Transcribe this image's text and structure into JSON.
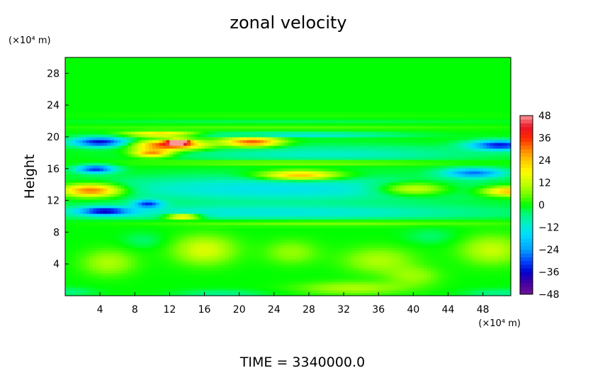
{
  "chart_data": {
    "type": "heatmap",
    "title": "zonal velocity",
    "ylabel": "Height",
    "y_unit": "(×10⁴ m)",
    "x_unit": "(×10⁴ m)",
    "footer": "TIME  =  3340000.0",
    "x_ticks": [
      "4",
      "8",
      "12",
      "16",
      "20",
      "24",
      "28",
      "32",
      "36",
      "40",
      "44",
      "48"
    ],
    "y_ticks": [
      "4",
      "8",
      "12",
      "16",
      "20",
      "24",
      "28"
    ],
    "xlim": [
      0,
      51.2
    ],
    "ylim": [
      0,
      30
    ],
    "colorbar": {
      "range": [
        -48,
        48
      ],
      "tick_labels": [
        "48",
        "36",
        "24",
        "12",
        "0",
        "−12",
        "−24",
        "−36",
        "−48"
      ],
      "tick_values": [
        48,
        36,
        24,
        12,
        0,
        -12,
        -24,
        -36,
        -48
      ]
    },
    "field": {
      "background_value": 0,
      "blobs": [
        {
          "x": 24,
          "y": 10.5,
          "rx": 26,
          "ry": 1.0,
          "v": -12
        },
        {
          "x": 24,
          "y": 13.5,
          "rx": 22,
          "ry": 1.6,
          "v": -14
        },
        {
          "x": 30,
          "y": 17.8,
          "rx": 18,
          "ry": 1.2,
          "v": -10
        },
        {
          "x": 4,
          "y": 19.4,
          "rx": 3.2,
          "ry": 0.6,
          "v": -36
        },
        {
          "x": 3.5,
          "y": 16.0,
          "rx": 2.2,
          "ry": 0.5,
          "v": -32
        },
        {
          "x": 4.5,
          "y": 10.7,
          "rx": 3.0,
          "ry": 0.5,
          "v": -32
        },
        {
          "x": 9.5,
          "y": 11.6,
          "rx": 1.6,
          "ry": 0.5,
          "v": -28
        },
        {
          "x": 50,
          "y": 19.0,
          "rx": 3.5,
          "ry": 0.6,
          "v": -34
        },
        {
          "x": 47,
          "y": 15.5,
          "rx": 3.5,
          "ry": 0.6,
          "v": -26
        },
        {
          "x": 26,
          "y": 20.3,
          "rx": 12,
          "ry": 0.3,
          "v": -14
        },
        {
          "x": 3,
          "y": 13.3,
          "rx": 3.5,
          "ry": 0.8,
          "v": 36
        },
        {
          "x": 12,
          "y": 19.0,
          "rx": 4.0,
          "ry": 0.6,
          "v": 38
        },
        {
          "x": 13,
          "y": 19.4,
          "rx": 1.3,
          "ry": 0.3,
          "v": 48
        },
        {
          "x": 10,
          "y": 18.0,
          "rx": 2.2,
          "ry": 0.5,
          "v": 30
        },
        {
          "x": 21.5,
          "y": 19.4,
          "rx": 3.2,
          "ry": 0.6,
          "v": 34
        },
        {
          "x": 27,
          "y": 15.2,
          "rx": 4.5,
          "ry": 0.6,
          "v": 28
        },
        {
          "x": 13.5,
          "y": 10.0,
          "rx": 2.0,
          "ry": 0.3,
          "v": 32
        },
        {
          "x": 51,
          "y": 13.2,
          "rx": 3.0,
          "ry": 0.6,
          "v": 28
        },
        {
          "x": 40,
          "y": 13.5,
          "rx": 4.0,
          "ry": 0.8,
          "v": 20
        },
        {
          "x": 11,
          "y": 20.4,
          "rx": 4.0,
          "ry": 0.3,
          "v": 26
        },
        {
          "x": 28,
          "y": 16.8,
          "rx": 18,
          "ry": 0.4,
          "v": 12
        },
        {
          "x": 30,
          "y": 9.2,
          "rx": 22,
          "ry": 0.4,
          "v": 8
        },
        {
          "x": 16,
          "y": 5.8,
          "rx": 3.5,
          "ry": 1.8,
          "v": 14
        },
        {
          "x": 5,
          "y": 4.2,
          "rx": 3.0,
          "ry": 1.6,
          "v": 10
        },
        {
          "x": 49,
          "y": 5.8,
          "rx": 3.5,
          "ry": 1.8,
          "v": 12
        },
        {
          "x": 36,
          "y": 4.5,
          "rx": 4.0,
          "ry": 1.6,
          "v": 10
        },
        {
          "x": 26,
          "y": 5.5,
          "rx": 3.0,
          "ry": 1.5,
          "v": 8
        },
        {
          "x": 33,
          "y": 1.0,
          "rx": 6.0,
          "ry": 0.8,
          "v": 10
        },
        {
          "x": 40,
          "y": 2.5,
          "rx": 3.0,
          "ry": 1.2,
          "v": 8
        },
        {
          "x": 18,
          "y": 0.2,
          "rx": 5.0,
          "ry": 0.6,
          "v": -6
        },
        {
          "x": 50,
          "y": 0.3,
          "rx": 4.0,
          "ry": 0.6,
          "v": -6
        },
        {
          "x": 0.5,
          "y": 0.5,
          "rx": 3.0,
          "ry": 0.6,
          "v": -5
        },
        {
          "x": 9,
          "y": 7.0,
          "rx": 2.5,
          "ry": 1.0,
          "v": -4
        },
        {
          "x": 42,
          "y": 7.5,
          "rx": 3.0,
          "ry": 1.0,
          "v": -4
        },
        {
          "x": 25,
          "y": 21.2,
          "rx": 26,
          "ry": 0.3,
          "v": 4
        },
        {
          "x": 25,
          "y": 22.0,
          "rx": 26,
          "ry": 0.25,
          "v": -3
        },
        {
          "x": 25,
          "y": 22.8,
          "rx": 26,
          "ry": 0.25,
          "v": 2
        }
      ]
    }
  }
}
